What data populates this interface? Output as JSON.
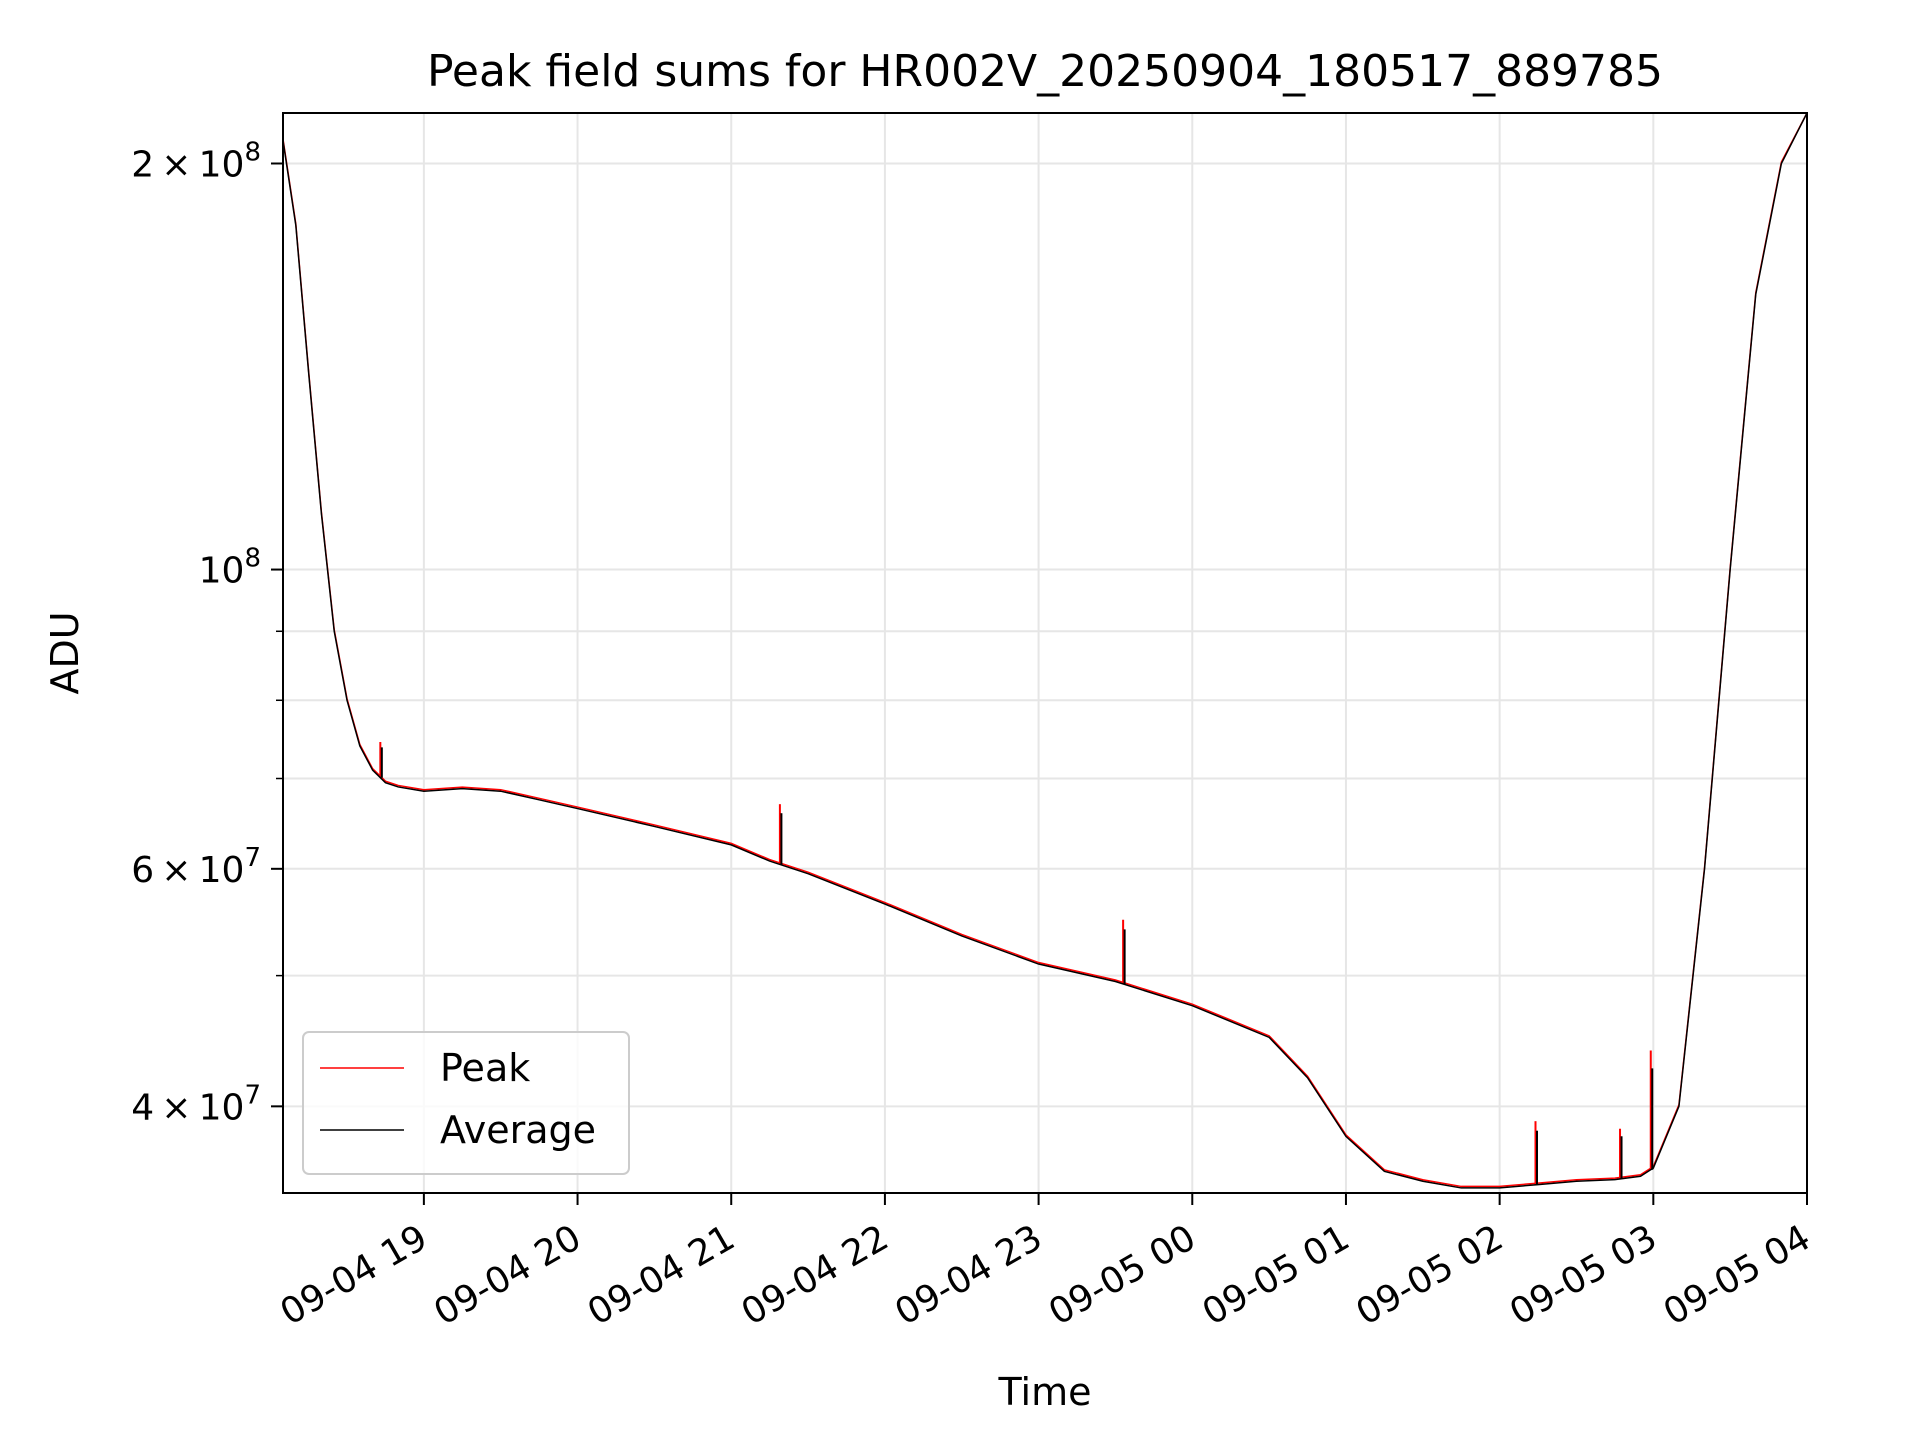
{
  "chart_data": {
    "type": "line",
    "title": "Peak field sums for HR002V_20250904_180517_889785",
    "xlabel": "Time",
    "ylabel": "ADU",
    "y_scale": "log",
    "grid": true,
    "legend_position": "lower-left",
    "xlim": [
      "2025-09-04 18:05",
      "2025-09-05 04:00"
    ],
    "ylim": [
      34500000,
      218000000
    ],
    "x_ticks": [
      "2025-09-04 19:00",
      "2025-09-04 20:00",
      "2025-09-04 21:00",
      "2025-09-04 22:00",
      "2025-09-04 23:00",
      "2025-09-05 00:00",
      "2025-09-05 01:00",
      "2025-09-05 02:00",
      "2025-09-05 03:00",
      "2025-09-05 04:00"
    ],
    "x_tick_labels": [
      "09-04 19",
      "09-04 20",
      "09-04 21",
      "09-04 22",
      "09-04 23",
      "09-05 00",
      "09-05 01",
      "09-05 02",
      "09-05 03",
      "09-05 04"
    ],
    "y_major_ticks": [
      {
        "value": 200000000,
        "mantissa": "2",
        "exponent": "8"
      },
      {
        "value": 100000000,
        "mantissa": "",
        "exponent": "8"
      },
      {
        "value": 60000000,
        "mantissa": "6",
        "exponent": "7"
      },
      {
        "value": 40000000,
        "mantissa": "4",
        "exponent": "7"
      }
    ],
    "y_minor_ticks": [
      50000000,
      70000000,
      80000000,
      90000000
    ],
    "series": [
      {
        "name": "Average",
        "color": "#000000",
        "x": [
          "2025-09-04 18:05",
          "2025-09-04 18:10",
          "2025-09-04 18:15",
          "2025-09-04 18:20",
          "2025-09-04 18:25",
          "2025-09-04 18:30",
          "2025-09-04 18:35",
          "2025-09-04 18:40",
          "2025-09-04 18:45",
          "2025-09-04 18:50",
          "2025-09-04 19:00",
          "2025-09-04 19:15",
          "2025-09-04 19:30",
          "2025-09-04 19:45",
          "2025-09-04 20:00",
          "2025-09-04 20:30",
          "2025-09-04 21:00",
          "2025-09-04 21:15",
          "2025-09-04 21:30",
          "2025-09-04 22:00",
          "2025-09-04 22:30",
          "2025-09-04 23:00",
          "2025-09-04 23:30",
          "2025-09-05 00:00",
          "2025-09-05 00:30",
          "2025-09-05 00:45",
          "2025-09-05 01:00",
          "2025-09-05 01:15",
          "2025-09-05 01:30",
          "2025-09-05 01:45",
          "2025-09-05 02:00",
          "2025-09-05 02:15",
          "2025-09-05 02:30",
          "2025-09-05 02:45",
          "2025-09-05 02:55",
          "2025-09-05 03:00",
          "2025-09-05 03:10",
          "2025-09-05 03:20",
          "2025-09-05 03:30",
          "2025-09-05 03:40",
          "2025-09-05 03:50",
          "2025-09-05 04:00"
        ],
        "y": [
          208000000,
          180000000,
          140000000,
          110000000,
          90000000,
          80000000,
          74000000,
          71000000,
          69500000,
          69000000,
          68500000,
          68800000,
          68500000,
          67500000,
          66500000,
          64500000,
          62500000,
          60800000,
          59500000,
          56500000,
          53500000,
          51000000,
          49500000,
          47500000,
          45000000,
          42000000,
          38000000,
          35800000,
          35200000,
          34800000,
          34800000,
          35000000,
          35200000,
          35300000,
          35500000,
          36000000,
          40000000,
          60000000,
          100000000,
          160000000,
          200000000,
          218000000
        ]
      },
      {
        "name": "Peak",
        "color": "#ff0000",
        "spikes": [
          {
            "x": "2025-09-04 18:43",
            "y": 74500000
          },
          {
            "x": "2025-09-04 21:19",
            "y": 67000000
          },
          {
            "x": "2025-09-04 23:33",
            "y": 55000000
          },
          {
            "x": "2025-09-05 02:14",
            "y": 39000000
          },
          {
            "x": "2025-09-05 02:47",
            "y": 38500000
          },
          {
            "x": "2025-09-05 02:59",
            "y": 44000000
          }
        ]
      }
    ]
  }
}
